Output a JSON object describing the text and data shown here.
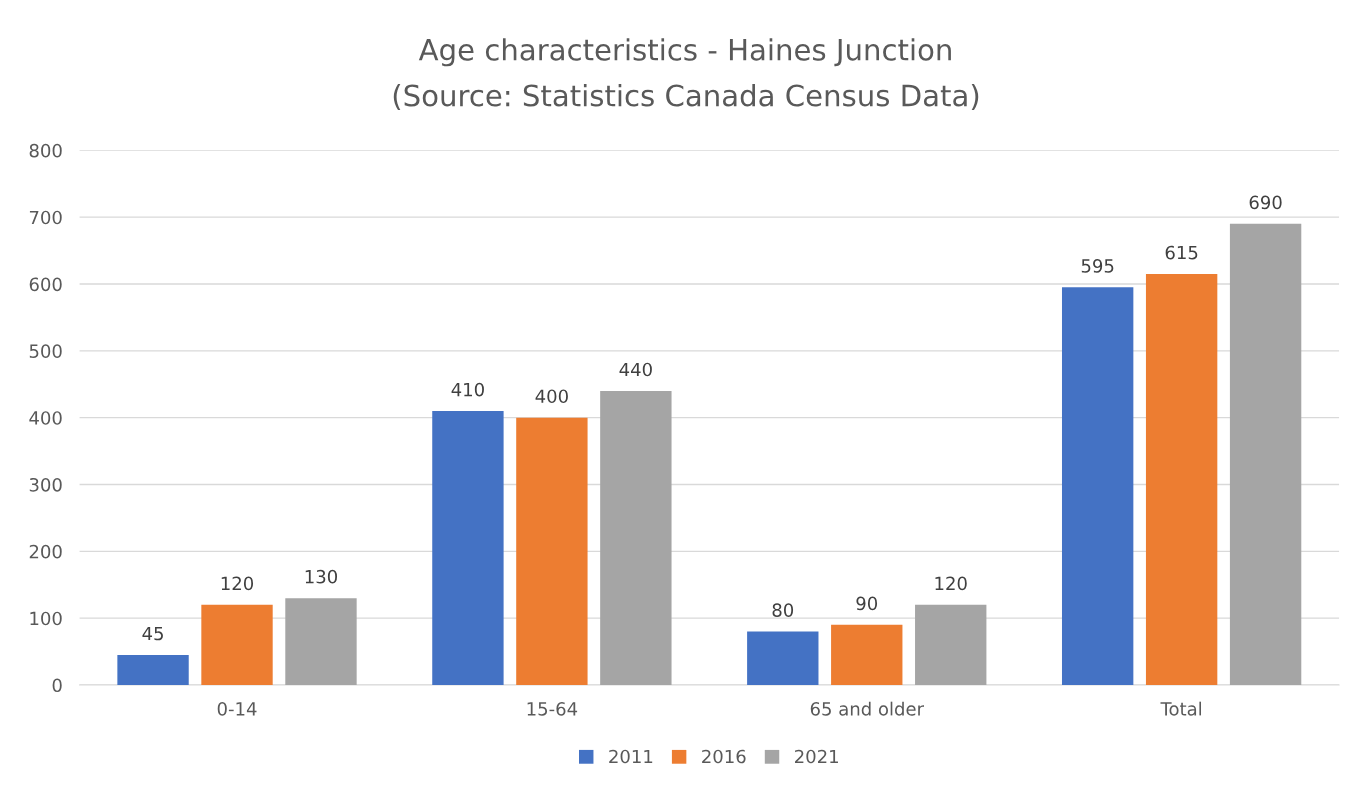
{
  "chart_data": {
    "type": "bar",
    "title": "Age characteristics - Haines Junction",
    "subtitle": "(Source: Statistics Canada Census Data)",
    "categories": [
      "0-14",
      "15-64",
      "65 and older",
      "Total"
    ],
    "series": [
      {
        "name": "2011",
        "color": "#4472c4",
        "values": [
          45,
          410,
          80,
          595
        ]
      },
      {
        "name": "2016",
        "color": "#ed7d31",
        "values": [
          120,
          400,
          90,
          615
        ]
      },
      {
        "name": "2021",
        "color": "#a5a5a5",
        "values": [
          130,
          440,
          120,
          690
        ]
      }
    ],
    "ylim": [
      0,
      800
    ],
    "yticks": [
      0,
      100,
      200,
      300,
      400,
      500,
      600,
      700,
      800
    ],
    "grid": "y",
    "legend": "bottom",
    "data_labels": true
  }
}
